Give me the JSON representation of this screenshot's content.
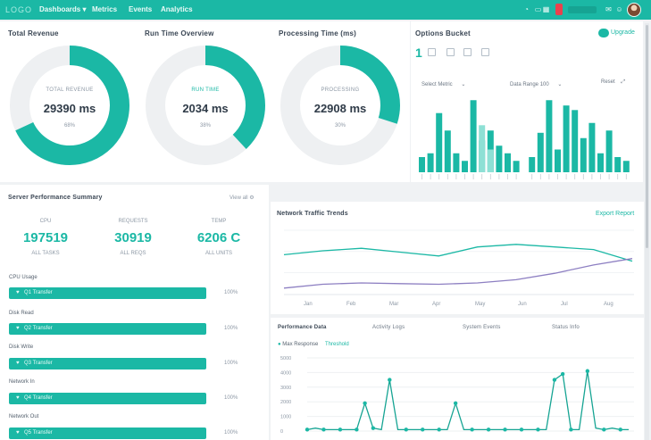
{
  "colors": {
    "accent": "#1bb8a5",
    "purple": "#8d7fc2",
    "track": "#eef0f2"
  },
  "topbar": {
    "logo": "LOGO",
    "nav": [
      "Dashboards ▾",
      "Metrics",
      "Events",
      "Analytics"
    ]
  },
  "donuts": [
    {
      "title": "Total Revenue",
      "label": "TOTAL REVENUE",
      "value": "29390 ms",
      "pct": "68%",
      "fraction": 0.68
    },
    {
      "title": "Run Time Overview",
      "label": "RUN TIME",
      "value": "2034 ms",
      "pct": "38%",
      "fraction": 0.38
    },
    {
      "title": "Processing Time (ms)",
      "label": "PROCESSING",
      "value": "22908 ms",
      "pct": "30%",
      "fraction": 0.3
    }
  ],
  "options": {
    "title": "Options Bucket",
    "number": "1",
    "link_label": "Upgrade",
    "dropdown1": "Select Metric",
    "dropdown2": "Data Range 100",
    "reset_label": "Reset"
  },
  "options_chart": {
    "type": "bar",
    "values": [
      0.2,
      0.25,
      0.78,
      0.55,
      0.25,
      0.15,
      0.95,
      0.42,
      0.55,
      0.35,
      0.25,
      0.15,
      0.2,
      0.52,
      0.95,
      0.3,
      0.88,
      0.82,
      0.45,
      0.65,
      0.25,
      0.55,
      0.2,
      0.15
    ],
    "secondary_values": [
      0,
      0,
      0,
      0,
      0,
      0,
      0,
      0.62,
      0.3,
      0,
      0,
      0,
      0,
      0,
      0,
      0,
      0,
      0,
      0,
      0,
      0,
      0,
      0,
      0
    ]
  },
  "summary": {
    "title": "Server Performance Summary",
    "action": "View all",
    "stats": [
      {
        "label": "CPU",
        "value": "197519",
        "sub": "ALL TASKS"
      },
      {
        "label": "REQUESTS",
        "value": "30919",
        "sub": "ALL REQS"
      },
      {
        "label": "TEMP",
        "value": "6206 C",
        "sub": "ALL UNITS"
      }
    ],
    "rows": [
      {
        "label": "CPU Usage",
        "bar": "Q1 Transfer",
        "value": "100%"
      },
      {
        "label": "Disk Read",
        "bar": "Q2 Transfer",
        "value": "100%"
      },
      {
        "label": "Disk Write",
        "bar": "Q3 Transfer",
        "value": "100%"
      },
      {
        "label": "Network In",
        "bar": "Q4 Transfer",
        "value": "100%"
      },
      {
        "label": "Network Out",
        "bar": "Q5 Transfer",
        "value": "100%"
      }
    ]
  },
  "line_panel": {
    "title": "Network Traffic Trends",
    "link": "Export Report",
    "x_labels": [
      "Jan",
      "Feb",
      "Mar",
      "Apr",
      "May",
      "Jun",
      "Jul",
      "Aug"
    ]
  },
  "line_chart": {
    "type": "line",
    "series": [
      {
        "values": [
          0.62,
          0.68,
          0.72,
          0.66,
          0.6,
          0.74,
          0.78,
          0.74,
          0.7,
          0.52
        ]
      },
      {
        "values": [
          0.1,
          0.16,
          0.18,
          0.17,
          0.16,
          0.18,
          0.23,
          0.33,
          0.46,
          0.56
        ]
      }
    ]
  },
  "events_panel": {
    "tabs": [
      "Performance Data",
      "Activity Logs",
      "System Events",
      "Status Info"
    ],
    "legend_a": "Max Response",
    "legend_b": "Threshold",
    "y_labels": [
      "5000",
      "4000",
      "3000",
      "2000",
      "1000",
      "0"
    ]
  },
  "events_chart": {
    "type": "line",
    "values": [
      0.02,
      0.04,
      0.02,
      0.02,
      0.02,
      0.02,
      0.02,
      0.38,
      0.04,
      0.02,
      0.7,
      0.02,
      0.02,
      0.02,
      0.02,
      0.02,
      0.02,
      0.02,
      0.38,
      0.02,
      0.02,
      0.02,
      0.02,
      0.02,
      0.02,
      0.02,
      0.02,
      0.02,
      0.02,
      0.02,
      0.7,
      0.78,
      0.02,
      0.02,
      0.82,
      0.04,
      0.02,
      0.04,
      0.02,
      0.02
    ]
  }
}
